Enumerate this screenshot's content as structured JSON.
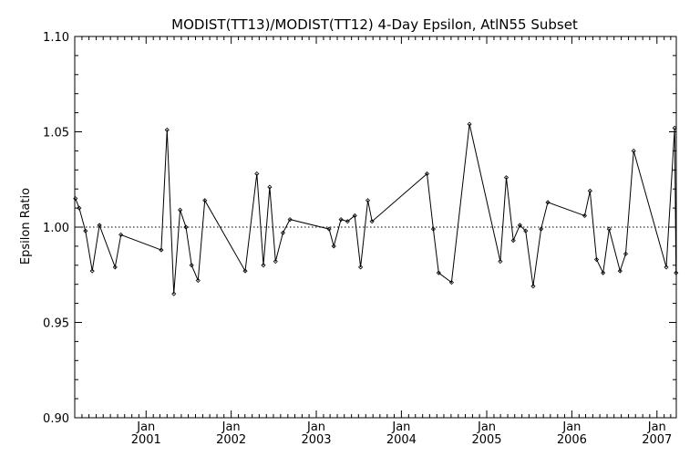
{
  "chart_data": {
    "type": "line",
    "title": "MODIST(TT13)/MODIST(TT12) 4-Day Epsilon, AtlN55 Subset",
    "xlabel": "",
    "ylabel": "Epsilon Ratio",
    "ylim": [
      0.9,
      1.1
    ],
    "yticks": [
      "0.90",
      "0.95",
      "1.00",
      "1.05",
      "1.10"
    ],
    "xlim": [
      "2000-03-01",
      "2007-03-25"
    ],
    "xticks": [
      {
        "date": "2001-01-01",
        "month": "Jan",
        "year": "2001"
      },
      {
        "date": "2002-01-01",
        "month": "Jan",
        "year": "2002"
      },
      {
        "date": "2003-01-01",
        "month": "Jan",
        "year": "2003"
      },
      {
        "date": "2004-01-01",
        "month": "Jan",
        "year": "2004"
      },
      {
        "date": "2005-01-01",
        "month": "Jan",
        "year": "2005"
      },
      {
        "date": "2006-01-01",
        "month": "Jan",
        "year": "2006"
      },
      {
        "date": "2007-01-01",
        "month": "Jan",
        "year": "2007"
      }
    ],
    "reference_line": 1.0,
    "grid": false,
    "series": [
      {
        "x": [
          "2000-03-04",
          "2000-03-20",
          "2000-04-16",
          "2000-05-15",
          "2000-06-15",
          "2000-08-21",
          "2000-09-15",
          "2001-03-07",
          "2001-04-01",
          "2001-04-30",
          "2001-05-27",
          "2001-06-21",
          "2001-07-15",
          "2001-08-12",
          "2001-09-10",
          "2002-03-02",
          "2002-04-21",
          "2002-05-19",
          "2002-06-15",
          "2002-07-10",
          "2002-08-11",
          "2002-09-10",
          "2003-02-25",
          "2003-03-17",
          "2003-04-17",
          "2003-05-15",
          "2003-06-15",
          "2003-07-10",
          "2003-08-10",
          "2003-08-28",
          "2004-04-20",
          "2004-05-17",
          "2004-06-09",
          "2004-08-03",
          "2004-10-19",
          "2005-02-28",
          "2005-03-26",
          "2005-04-25",
          "2005-05-23",
          "2005-06-17",
          "2005-07-19",
          "2005-08-22",
          "2005-09-20",
          "2006-02-25",
          "2006-03-20",
          "2006-04-17",
          "2006-05-15",
          "2006-06-10",
          "2006-07-27",
          "2006-08-20",
          "2006-09-23",
          "2007-02-10",
          "2007-03-18",
          "2007-03-24"
        ],
        "y": [
          1.015,
          1.01,
          0.998,
          0.977,
          1.001,
          0.979,
          0.996,
          0.988,
          1.051,
          0.965,
          1.009,
          1.0,
          0.98,
          0.972,
          1.014,
          0.977,
          1.028,
          0.98,
          1.021,
          0.982,
          0.997,
          1.004,
          0.999,
          0.99,
          1.004,
          1.003,
          1.006,
          0.979,
          1.014,
          1.003,
          1.028,
          0.999,
          0.976,
          0.971,
          1.054,
          0.982,
          1.026,
          0.993,
          1.001,
          0.998,
          0.969,
          0.999,
          1.013,
          1.006,
          1.019,
          0.983,
          0.976,
          0.999,
          0.977,
          0.986,
          1.04,
          0.979,
          1.052,
          0.976
        ]
      }
    ]
  }
}
